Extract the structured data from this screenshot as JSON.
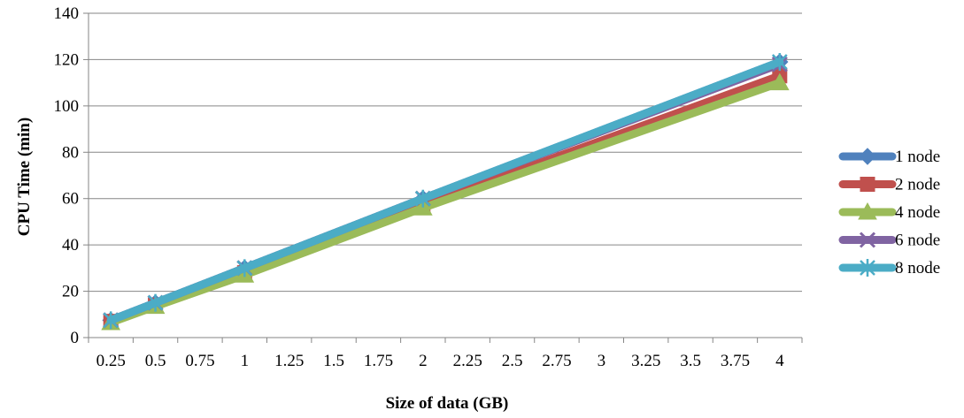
{
  "chart_data": {
    "type": "line",
    "title": "",
    "xlabel": "Size of data (GB)",
    "ylabel": "CPU Time (min)",
    "ylim": [
      0,
      140
    ],
    "yticks": [
      0,
      20,
      40,
      60,
      80,
      100,
      120,
      140
    ],
    "x_categories": [
      "0.25",
      "0.5",
      "0.75",
      "1",
      "1.25",
      "1.5",
      "1.75",
      "2",
      "2.25",
      "2.5",
      "2.75",
      "3",
      "3.25",
      "3.5",
      "3.75",
      "4"
    ],
    "grid": "horizontal",
    "legend_position": "right",
    "series": [
      {
        "name": "1 node",
        "color": "#4F81BD",
        "marker": "diamond",
        "x": [
          "0.25",
          "0.5",
          "1",
          "2",
          "4"
        ],
        "values": [
          7.5,
          15,
          30,
          60,
          119
        ]
      },
      {
        "name": "2 node",
        "color": "#C0504D",
        "marker": "square",
        "x": [
          "0.25",
          "0.5",
          "1",
          "2",
          "4"
        ],
        "values": [
          7,
          14,
          28,
          57,
          113
        ]
      },
      {
        "name": "4 node",
        "color": "#9BBB59",
        "marker": "triangle",
        "x": [
          "0.25",
          "0.5",
          "1",
          "2",
          "4"
        ],
        "values": [
          6.5,
          13.5,
          27,
          56,
          110
        ]
      },
      {
        "name": "6 node",
        "color": "#8064A2",
        "marker": "x",
        "x": [
          "0.25",
          "0.5",
          "1",
          "2",
          "4"
        ],
        "values": [
          7.5,
          15,
          30,
          60,
          118
        ]
      },
      {
        "name": "8 node",
        "color": "#4BACC6",
        "marker": "star",
        "x": [
          "0.25",
          "0.5",
          "1",
          "2",
          "4"
        ],
        "values": [
          7.5,
          15,
          30,
          60,
          119
        ]
      }
    ]
  }
}
